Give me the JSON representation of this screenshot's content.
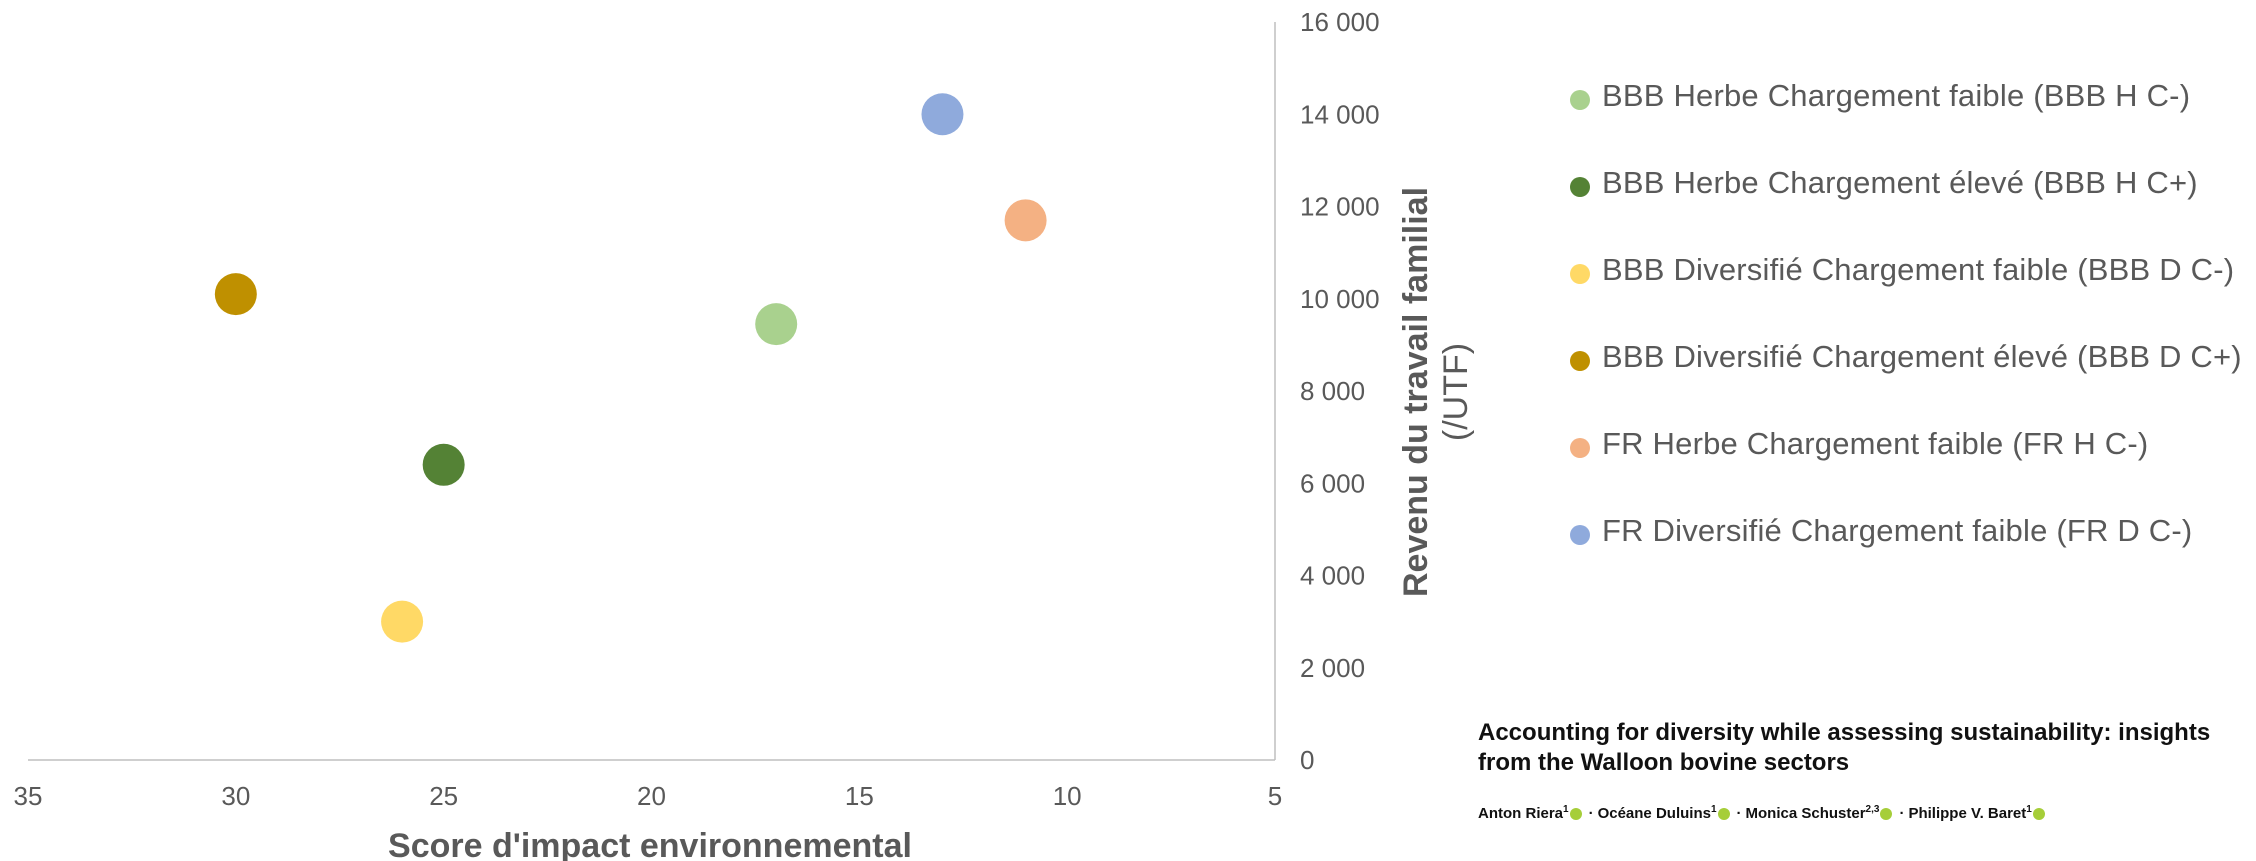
{
  "chart_data": {
    "type": "scatter",
    "title": "",
    "xlabel": "Score d'impact environnemental",
    "ylabel": "Revenu du travail familial",
    "ylabel_unit": "(/UTF)",
    "x_reversed": true,
    "xlim": [
      5,
      35
    ],
    "ylim": [
      0,
      16000
    ],
    "x_ticks": [
      35,
      30,
      25,
      20,
      15,
      10,
      5
    ],
    "y_ticks": [
      0,
      2000,
      4000,
      6000,
      8000,
      10000,
      12000,
      14000,
      16000
    ],
    "y_tick_labels": [
      "0",
      "2 000",
      "4 000",
      "6 000",
      "8 000",
      "10 000",
      "12 000",
      "14 000",
      "16 000"
    ],
    "grid": false,
    "legend_position": "right",
    "series": [
      {
        "name": "BBB Herbe Chargement faible (BBB H C-)",
        "color": "#a9d18e",
        "points": [
          {
            "x": 17,
            "y": 9450
          }
        ]
      },
      {
        "name": "BBB Herbe Chargement élevé (BBB H C+)",
        "color": "#548235",
        "points": [
          {
            "x": 25,
            "y": 6400
          }
        ]
      },
      {
        "name": "BBB Diversifié Chargement faible (BBB D C-)",
        "color": "#ffd966",
        "points": [
          {
            "x": 26,
            "y": 3000
          }
        ]
      },
      {
        "name": "BBB Diversifié Chargement élevé (BBB D C+)",
        "color": "#bf9000",
        "points": [
          {
            "x": 30,
            "y": 10100
          }
        ]
      },
      {
        "name": "FR Herbe Chargement faible (FR H C-)",
        "color": "#f4b183",
        "points": [
          {
            "x": 11,
            "y": 11700
          }
        ]
      },
      {
        "name": "FR Diversifié Chargement faible (FR D C-)",
        "color": "#8faadc",
        "points": [
          {
            "x": 13,
            "y": 14000
          }
        ]
      }
    ]
  },
  "citation": {
    "title": "Accounting for diversity while assessing sustainability: insights from the Walloon bovine sectors",
    "authors": [
      {
        "name": "Anton Riera",
        "sup": "1"
      },
      {
        "name": "Océane Duluins",
        "sup": "1"
      },
      {
        "name": "Monica Schuster",
        "sup": "2,3"
      },
      {
        "name": "Philippe V. Baret",
        "sup": "1"
      }
    ],
    "separator": "·",
    "orcid_color": "#a6ce39"
  }
}
